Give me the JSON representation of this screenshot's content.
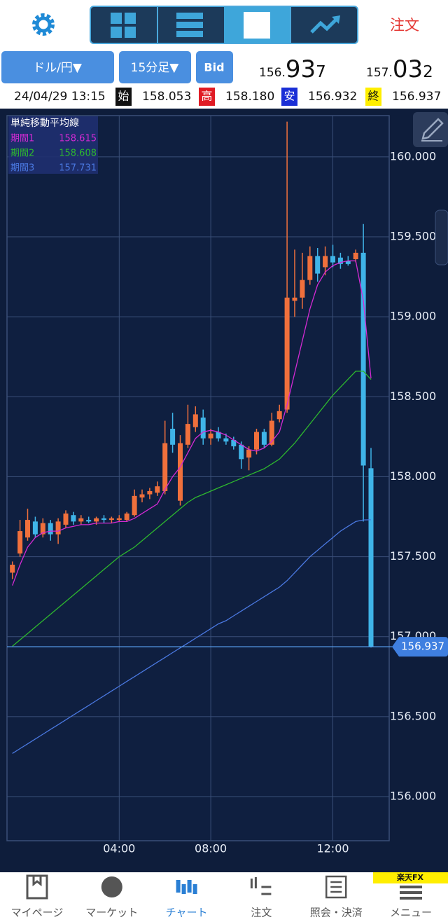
{
  "toolbar": {
    "order": "注文"
  },
  "selectors": {
    "pair": "ドル/円▼",
    "timeframe": "15分足▼",
    "price_type": "Bid"
  },
  "quotes": {
    "bid": {
      "head": "156.",
      "big": "93",
      "tail": "7"
    },
    "ask": {
      "head": "157.",
      "big": "03",
      "tail": "2"
    }
  },
  "ohlc_bar": {
    "datetime": "24/04/29 13:15",
    "items": [
      {
        "label": "始",
        "value": "158.053"
      },
      {
        "label": "高",
        "value": "158.180"
      },
      {
        "label": "安",
        "value": "156.932"
      },
      {
        "label": "終",
        "value": "156.937"
      }
    ]
  },
  "chart_data": {
    "type": "candlestick",
    "categories": [
      null,
      null,
      null,
      null,
      null,
      null,
      null,
      null,
      null,
      null,
      null,
      null,
      null,
      null,
      "04:00",
      null,
      null,
      null,
      null,
      null,
      null,
      null,
      null,
      null,
      null,
      null,
      "08:00",
      null,
      null,
      null,
      null,
      null,
      null,
      null,
      null,
      null,
      null,
      null,
      null,
      null,
      null,
      null,
      "12:00",
      null,
      null,
      null,
      null,
      null
    ],
    "open": [
      157.4,
      157.52,
      157.62,
      157.72,
      157.64,
      157.71,
      157.64,
      157.7,
      157.76,
      157.72,
      157.73,
      157.72,
      157.74,
      157.73,
      157.73,
      157.73,
      157.76,
      157.87,
      157.89,
      157.9,
      157.91,
      158.3,
      157.85,
      158.2,
      158.31,
      158.37,
      158.24,
      158.28,
      158.24,
      158.23,
      158.2,
      158.12,
      158.17,
      158.28,
      158.2,
      158.36,
      158.42,
      159.1,
      159.12,
      159.23,
      159.38,
      159.31,
      159.38,
      159.37,
      159.35,
      159.36,
      159.4,
      158.053
    ],
    "high": [
      157.47,
      157.73,
      157.8,
      157.75,
      157.74,
      157.73,
      157.74,
      157.79,
      157.78,
      157.76,
      157.75,
      157.75,
      157.76,
      157.75,
      157.76,
      157.78,
      157.92,
      157.92,
      157.93,
      157.97,
      158.35,
      158.4,
      158.26,
      158.45,
      158.44,
      158.42,
      158.3,
      158.31,
      158.27,
      158.25,
      158.22,
      158.19,
      158.3,
      158.3,
      158.4,
      158.45,
      160.22,
      159.42,
      159.4,
      159.44,
      159.43,
      159.44,
      159.45,
      159.4,
      159.38,
      159.42,
      159.58,
      158.18
    ],
    "low": [
      157.36,
      157.5,
      157.6,
      157.62,
      157.62,
      157.6,
      157.58,
      157.68,
      157.7,
      157.7,
      157.71,
      157.7,
      157.71,
      157.71,
      157.72,
      157.72,
      157.75,
      157.84,
      157.86,
      157.88,
      157.89,
      158.15,
      157.82,
      158.18,
      158.28,
      158.2,
      158.2,
      158.22,
      158.2,
      158.17,
      158.05,
      158.04,
      158.14,
      158.18,
      158.19,
      158.34,
      158.4,
      159.0,
      159.05,
      159.2,
      159.22,
      159.26,
      159.31,
      159.3,
      159.32,
      159.34,
      157.72,
      156.932
    ],
    "close": [
      157.45,
      157.66,
      157.73,
      157.64,
      157.71,
      157.64,
      157.72,
      157.77,
      157.72,
      157.74,
      157.72,
      157.74,
      157.73,
      157.74,
      157.74,
      157.77,
      157.88,
      157.89,
      157.91,
      157.94,
      158.21,
      158.2,
      158.21,
      158.33,
      158.39,
      158.24,
      158.27,
      158.24,
      158.22,
      158.19,
      158.11,
      158.17,
      158.28,
      158.2,
      158.35,
      158.41,
      159.12,
      159.12,
      159.23,
      159.38,
      159.27,
      159.38,
      159.34,
      159.33,
      159.33,
      159.4,
      158.07,
      156.937
    ],
    "up_color": "#f0703c",
    "down_color": "#3fb4e8",
    "legend_title": "単純移動平均線",
    "series": [
      {
        "name": "期間1",
        "color": "#d42ad4",
        "values": [
          157.32,
          157.45,
          157.56,
          157.62,
          157.65,
          157.66,
          157.66,
          157.68,
          157.69,
          157.7,
          157.7,
          157.71,
          157.71,
          157.71,
          157.72,
          157.72,
          157.74,
          157.77,
          157.8,
          157.83,
          157.92,
          158.0,
          158.06,
          158.15,
          158.24,
          158.28,
          158.29,
          158.28,
          158.26,
          158.23,
          158.2,
          158.17,
          158.16,
          158.18,
          158.22,
          158.28,
          158.45,
          158.65,
          158.85,
          159.05,
          159.2,
          159.28,
          159.32,
          159.34,
          159.35,
          159.35,
          159.1,
          158.615
        ]
      },
      {
        "name": "期間2",
        "color": "#2eb82e",
        "values": [
          156.94,
          156.98,
          157.02,
          157.06,
          157.1,
          157.14,
          157.18,
          157.22,
          157.26,
          157.3,
          157.34,
          157.38,
          157.42,
          157.46,
          157.5,
          157.53,
          157.56,
          157.6,
          157.64,
          157.68,
          157.72,
          157.76,
          157.8,
          157.84,
          157.87,
          157.89,
          157.91,
          157.93,
          157.95,
          157.97,
          157.99,
          158.01,
          158.03,
          158.05,
          158.08,
          158.11,
          158.16,
          158.21,
          158.27,
          158.33,
          158.39,
          158.45,
          158.51,
          158.56,
          158.61,
          158.66,
          158.66,
          158.608
        ]
      },
      {
        "name": "期間3",
        "color": "#4a78e0",
        "values": [
          156.27,
          156.3,
          156.33,
          156.36,
          156.39,
          156.42,
          156.45,
          156.48,
          156.51,
          156.54,
          156.57,
          156.6,
          156.63,
          156.66,
          156.69,
          156.72,
          156.75,
          156.78,
          156.81,
          156.84,
          156.87,
          156.9,
          156.93,
          156.96,
          156.99,
          157.02,
          157.05,
          157.08,
          157.1,
          157.13,
          157.16,
          157.19,
          157.22,
          157.25,
          157.28,
          157.31,
          157.35,
          157.4,
          157.45,
          157.5,
          157.54,
          157.58,
          157.62,
          157.66,
          157.69,
          157.72,
          157.73,
          157.731
        ]
      }
    ],
    "ylim": [
      155.724,
      160.258
    ],
    "yticks": [
      {
        "value": 156,
        "label": "156.000"
      },
      {
        "value": 156.5,
        "label": "156.500"
      },
      {
        "value": 157,
        "label": "157.000"
      },
      {
        "value": 157.5,
        "label": "157.500"
      },
      {
        "value": 158,
        "label": "158.000"
      },
      {
        "value": 158.5,
        "label": "158.500"
      },
      {
        "value": 159,
        "label": "159.000"
      },
      {
        "value": 159.5,
        "label": "159.500"
      },
      {
        "value": 160,
        "label": "160.000"
      }
    ],
    "grid": true
  },
  "nav": {
    "badge": "楽天FX",
    "items": [
      "マイページ",
      "マーケット",
      "チャート",
      "注文",
      "照会・決済",
      "メニュー"
    ],
    "active": 2
  }
}
